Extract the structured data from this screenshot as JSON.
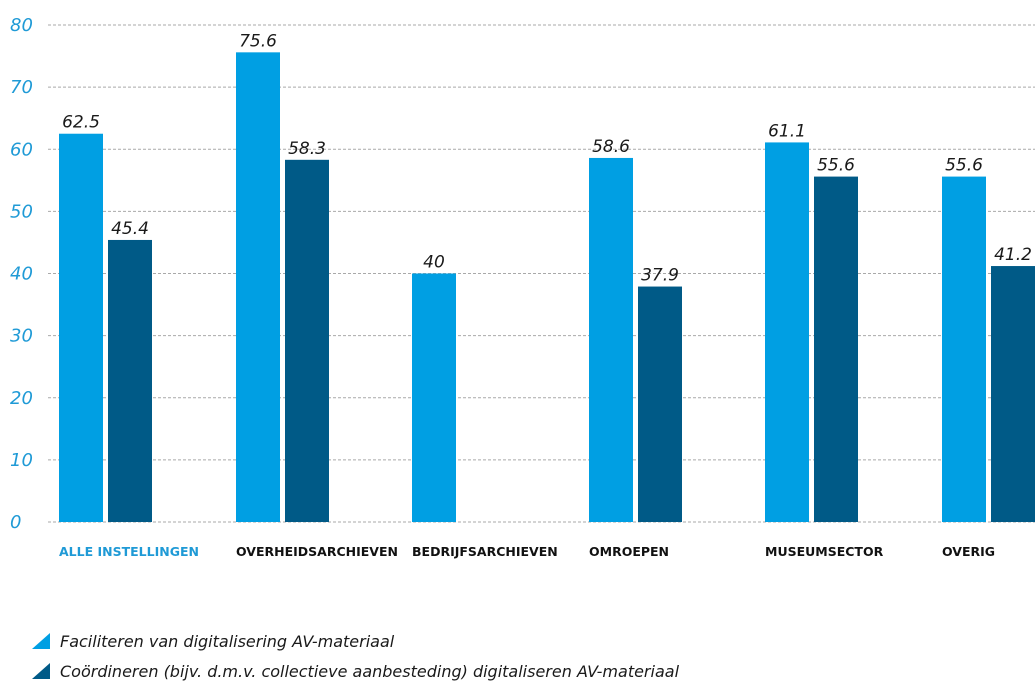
{
  "chart_data": {
    "type": "bar",
    "ylim": [
      0,
      80
    ],
    "yticks": [
      "0",
      "10",
      "20",
      "30",
      "40",
      "50",
      "60",
      "70",
      "80"
    ],
    "grid": true,
    "categories": [
      "ALLE INSTELLINGEN",
      "OVERHEIDSARCHIEVEN",
      "BEDRIJFSARCHIEVEN",
      "OMROEPEN",
      "MUSEUMSECTOR",
      "OVERIG"
    ],
    "highlight_category": 0,
    "series": [
      {
        "name": "Faciliteren van digitalisering AV-materiaal",
        "color": "#009fe3",
        "values": [
          62.5,
          75.6,
          40,
          58.6,
          61.1,
          55.6
        ],
        "labels": [
          "62.5",
          "75.6",
          "40",
          "58.6",
          "61.1",
          "55.6"
        ]
      },
      {
        "name": "Coördineren (bijv. d.m.v. collectieve aanbesteding) digitaliseren AV-materiaal",
        "color": "#005a87",
        "values": [
          45.4,
          58.3,
          null,
          37.9,
          55.6,
          41.2
        ],
        "labels": [
          "45.4",
          "58.3",
          "",
          "37.9",
          "55.6",
          "41.2"
        ]
      }
    ],
    "legend_position": "bottom-left"
  }
}
